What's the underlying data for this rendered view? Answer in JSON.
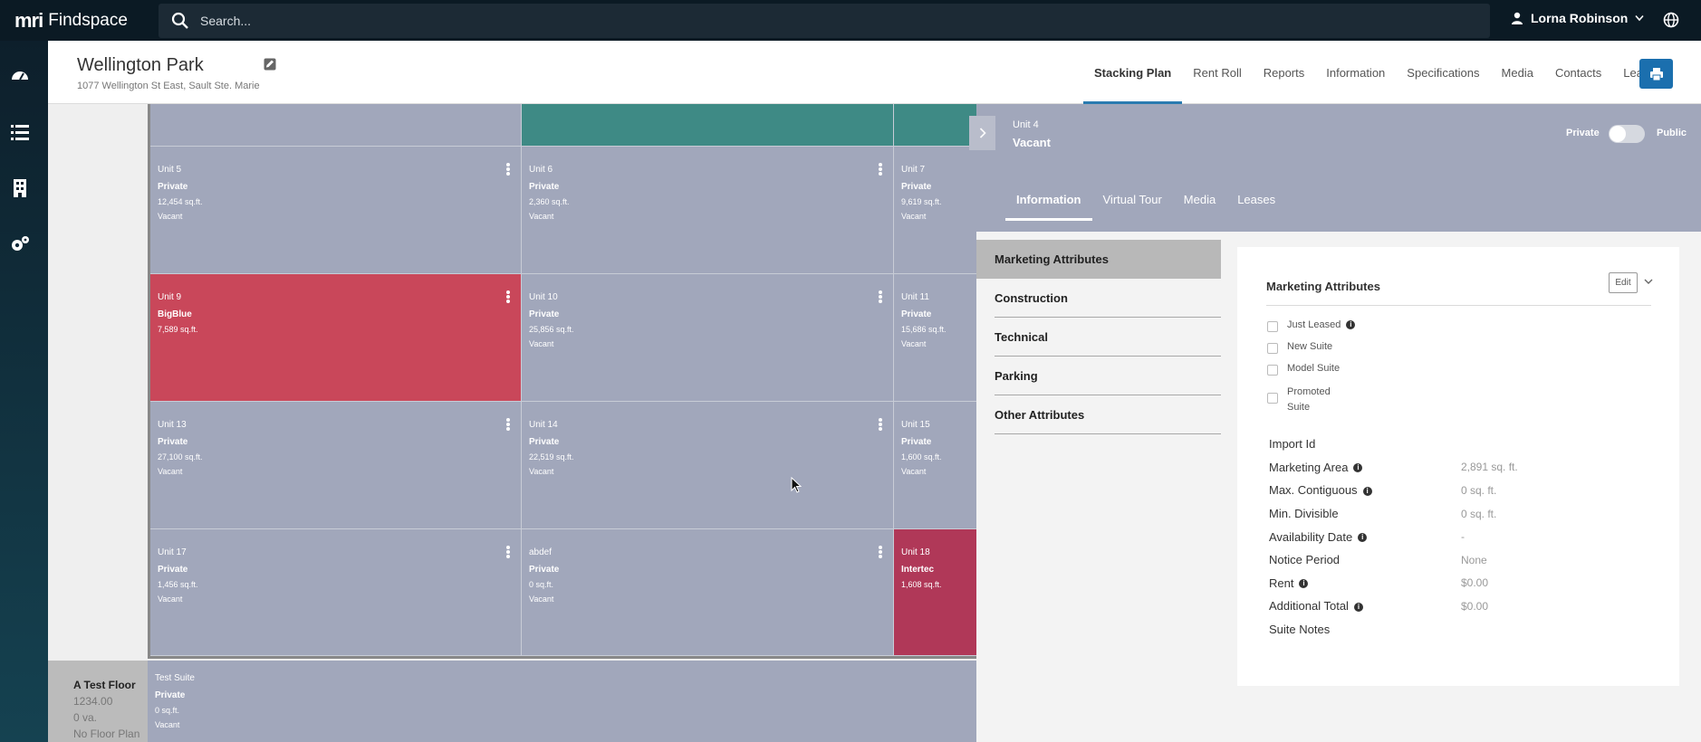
{
  "app": {
    "brand": "Findspace",
    "brand_mark": "mri"
  },
  "search": {
    "placeholder": "Search..."
  },
  "user": {
    "name": "Lorna Robinson"
  },
  "property": {
    "title": "Wellington Park",
    "address": "1077 Wellington St East, Sault Ste. Marie"
  },
  "nav": {
    "tabs": [
      "Stacking Plan",
      "Rent Roll",
      "Reports",
      "Information",
      "Specifications",
      "Media",
      "Contacts",
      "Leases"
    ],
    "active": "Stacking Plan"
  },
  "units": [
    {
      "unit": "Unit 5",
      "tenant": "Private",
      "size": "12,454 sq.ft.",
      "status": "Vacant"
    },
    {
      "unit": "Unit 6",
      "tenant": "Private",
      "size": "2,360 sq.ft.",
      "status": "Vacant"
    },
    {
      "unit": "Unit 7",
      "tenant": "Private",
      "size": "9,619 sq.ft.",
      "status": "Vacant"
    },
    {
      "unit": "Unit 9",
      "tenant": "BigBlue",
      "size": "7,589 sq.ft.",
      "status": ""
    },
    {
      "unit": "Unit 10",
      "tenant": "Private",
      "size": "25,856 sq.ft.",
      "status": "Vacant"
    },
    {
      "unit": "Unit 11",
      "tenant": "Private",
      "size": "15,686 sq.ft.",
      "status": "Vacant"
    },
    {
      "unit": "Unit 13",
      "tenant": "Private",
      "size": "27,100 sq.ft.",
      "status": "Vacant"
    },
    {
      "unit": "Unit 14",
      "tenant": "Private",
      "size": "22,519 sq.ft.",
      "status": "Vacant"
    },
    {
      "unit": "Unit 15",
      "tenant": "Private",
      "size": "1,600 sq.ft.",
      "status": "Vacant"
    },
    {
      "unit": "Unit 17",
      "tenant": "Private",
      "size": "1,456 sq.ft.",
      "status": "Vacant"
    },
    {
      "unit": "abdef",
      "tenant": "Private",
      "size": "0 sq.ft.",
      "status": "Vacant"
    },
    {
      "unit": "Unit 18",
      "tenant": "Intertec",
      "size": "1,608 sq.ft.",
      "status": ""
    }
  ],
  "test_floor": {
    "name": "A Test Floor",
    "area": "1234.00",
    "va": "0 va.",
    "plan": "No Floor Plan",
    "suite": {
      "unit": "Test Suite",
      "tenant": "Private",
      "size": "0 sq.ft.",
      "status": "Vacant"
    }
  },
  "detail": {
    "unit": "Unit 4",
    "status": "Vacant",
    "toggle_left": "Private",
    "toggle_right": "Public",
    "tabs": [
      "Information",
      "Virtual Tour",
      "Media",
      "Leases"
    ],
    "active_tab": "Information",
    "categories": [
      "Marketing Attributes",
      "Construction",
      "Technical",
      "Parking",
      "Other Attributes"
    ],
    "card": {
      "title": "Marketing Attributes",
      "edit_label": "Edit",
      "checkboxes": [
        "Just Leased",
        "New Suite",
        "Model Suite",
        "Promoted Suite"
      ],
      "properties": [
        {
          "key": "Import Id",
          "value": ""
        },
        {
          "key": "Marketing Area",
          "value": "2,891 sq. ft."
        },
        {
          "key": "Max. Contiguous",
          "value": "0 sq. ft."
        },
        {
          "key": "Min. Divisible",
          "value": "0 sq. ft."
        },
        {
          "key": "Availability Date",
          "value": "-"
        },
        {
          "key": "Notice Period",
          "value": "None"
        },
        {
          "key": "Rent",
          "value": "$0.00"
        },
        {
          "key": "Additional Total",
          "value": "$0.00"
        },
        {
          "key": "Suite Notes",
          "value": ""
        }
      ]
    }
  },
  "colors": {
    "topbar": "#0b1a24",
    "accent": "#1b6fae",
    "unit_private": "#a1a7bb",
    "unit_leased_red": "#c9475a",
    "unit_leased_crimson": "#b03858",
    "unit_teal": "#3e8a85"
  }
}
